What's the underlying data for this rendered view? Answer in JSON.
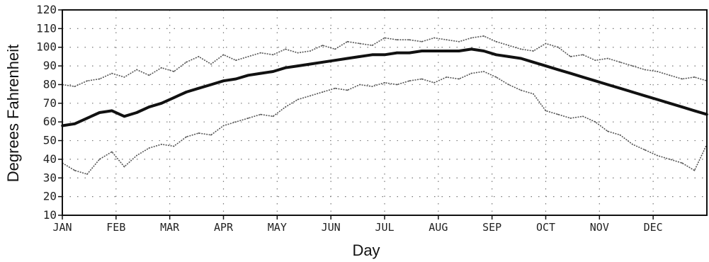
{
  "chart_data": {
    "type": "line",
    "title": "",
    "xlabel": "Day",
    "ylabel": "Degrees Fahrenheit",
    "ylim": [
      10,
      120
    ],
    "yticks": [
      "10",
      "20",
      "30",
      "40",
      "50",
      "60",
      "70",
      "80",
      "90",
      "100",
      "110",
      "120"
    ],
    "x_categories": [
      "JAN",
      "FEB",
      "MAR",
      "APR",
      "MAY",
      "JUN",
      "JUL",
      "AUG",
      "SEP",
      "OCT",
      "NOV",
      "DEC"
    ],
    "grid": "dotted",
    "legend": "none",
    "series": [
      {
        "key": "upper",
        "style": "thin-dotted",
        "color": "#555555",
        "x": [
          1,
          8,
          15,
          22,
          29,
          36,
          43,
          50,
          57,
          64,
          71,
          78,
          85,
          92,
          99,
          106,
          113,
          120,
          127,
          134,
          141,
          148,
          155,
          162,
          169,
          176,
          183,
          190,
          197,
          204,
          211,
          218,
          225,
          232,
          239,
          246,
          253,
          260,
          267,
          274,
          281,
          288,
          295,
          302,
          309,
          316,
          323,
          330,
          337,
          344,
          351,
          358,
          365
        ],
        "y": [
          80,
          79,
          82,
          83,
          86,
          84,
          88,
          85,
          89,
          87,
          92,
          95,
          91,
          96,
          93,
          95,
          97,
          96,
          99,
          97,
          98,
          101,
          99,
          103,
          102,
          101,
          105,
          104,
          104,
          103,
          105,
          104,
          103,
          105,
          106,
          103,
          101,
          99,
          98,
          102,
          100,
          95,
          96,
          93,
          94,
          92,
          90,
          88,
          87,
          85,
          83,
          84,
          82
        ]
      },
      {
        "key": "mean",
        "style": "thick-solid",
        "color": "#111111",
        "x": [
          1,
          8,
          15,
          22,
          29,
          36,
          43,
          50,
          57,
          64,
          71,
          78,
          85,
          92,
          99,
          106,
          113,
          120,
          127,
          134,
          141,
          148,
          155,
          162,
          169,
          176,
          183,
          190,
          197,
          204,
          211,
          218,
          225,
          232,
          239,
          246,
          253,
          260,
          267,
          274,
          281,
          288,
          295,
          302,
          309,
          316,
          323,
          330,
          337,
          344,
          351,
          358,
          365
        ],
        "y": [
          58,
          59,
          62,
          65,
          66,
          63,
          65,
          68,
          70,
          73,
          76,
          78,
          80,
          82,
          83,
          85,
          86,
          87,
          89,
          90,
          91,
          92,
          93,
          94,
          95,
          96,
          96,
          97,
          97,
          98,
          98,
          98,
          98,
          99,
          98,
          96,
          95,
          94,
          92,
          90,
          88,
          86,
          84,
          82,
          80,
          78,
          76,
          74,
          72,
          70,
          68,
          66,
          64
        ]
      },
      {
        "key": "lower",
        "style": "thin-dotted",
        "color": "#555555",
        "x": [
          1,
          8,
          15,
          22,
          29,
          36,
          43,
          50,
          57,
          64,
          71,
          78,
          85,
          92,
          99,
          106,
          113,
          120,
          127,
          134,
          141,
          148,
          155,
          162,
          169,
          176,
          183,
          190,
          197,
          204,
          211,
          218,
          225,
          232,
          239,
          246,
          253,
          260,
          267,
          274,
          281,
          288,
          295,
          302,
          309,
          316,
          323,
          330,
          337,
          344,
          351,
          358,
          365
        ],
        "y": [
          38,
          34,
          32,
          40,
          44,
          36,
          42,
          46,
          48,
          47,
          52,
          54,
          53,
          58,
          60,
          62,
          64,
          63,
          68,
          72,
          74,
          76,
          78,
          77,
          80,
          79,
          81,
          80,
          82,
          83,
          81,
          84,
          83,
          86,
          87,
          84,
          80,
          77,
          75,
          66,
          64,
          62,
          63,
          60,
          55,
          53,
          48,
          45,
          42,
          40,
          38,
          34,
          48
        ]
      }
    ]
  }
}
